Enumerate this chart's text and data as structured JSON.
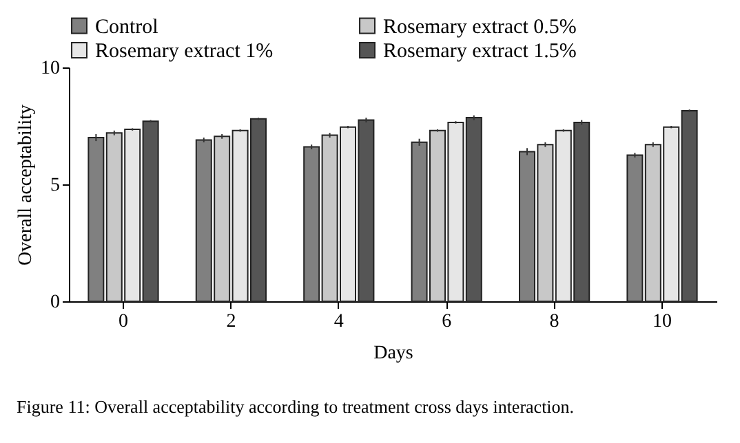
{
  "chart_data": {
    "type": "bar",
    "xlabel": "Days",
    "ylabel": "Overall acceptability",
    "categories": [
      "0",
      "2",
      "4",
      "6",
      "8",
      "10"
    ],
    "series": [
      {
        "name": "Control",
        "color": "#808080",
        "values": [
          7.0,
          6.9,
          6.6,
          6.8,
          6.4,
          6.25
        ],
        "errors": [
          0.15,
          0.1,
          0.1,
          0.15,
          0.15,
          0.1
        ]
      },
      {
        "name": "Rosemary extract 0.5%",
        "color": "#c8c8c8",
        "values": [
          7.2,
          7.05,
          7.1,
          7.3,
          6.7,
          6.7
        ],
        "errors": [
          0.1,
          0.1,
          0.1,
          0.05,
          0.1,
          0.1
        ]
      },
      {
        "name": "Rosemary extract 1%",
        "color": "#e6e6e6",
        "values": [
          7.35,
          7.3,
          7.45,
          7.65,
          7.3,
          7.45
        ],
        "errors": [
          0.05,
          0.05,
          0.05,
          0.05,
          0.05,
          0.05
        ]
      },
      {
        "name": "Rosemary extract 1.5%",
        "color": "#555555",
        "values": [
          7.7,
          7.8,
          7.75,
          7.85,
          7.65,
          8.15
        ],
        "errors": [
          0.05,
          0.05,
          0.1,
          0.1,
          0.1,
          0.05
        ]
      }
    ],
    "ylim": [
      0,
      10
    ],
    "yticks": [
      0,
      5,
      10
    ],
    "grid": false,
    "legend": "top",
    "annotations": [
      "Figure 11: Overall acceptability according to treatment cross days interaction."
    ]
  }
}
